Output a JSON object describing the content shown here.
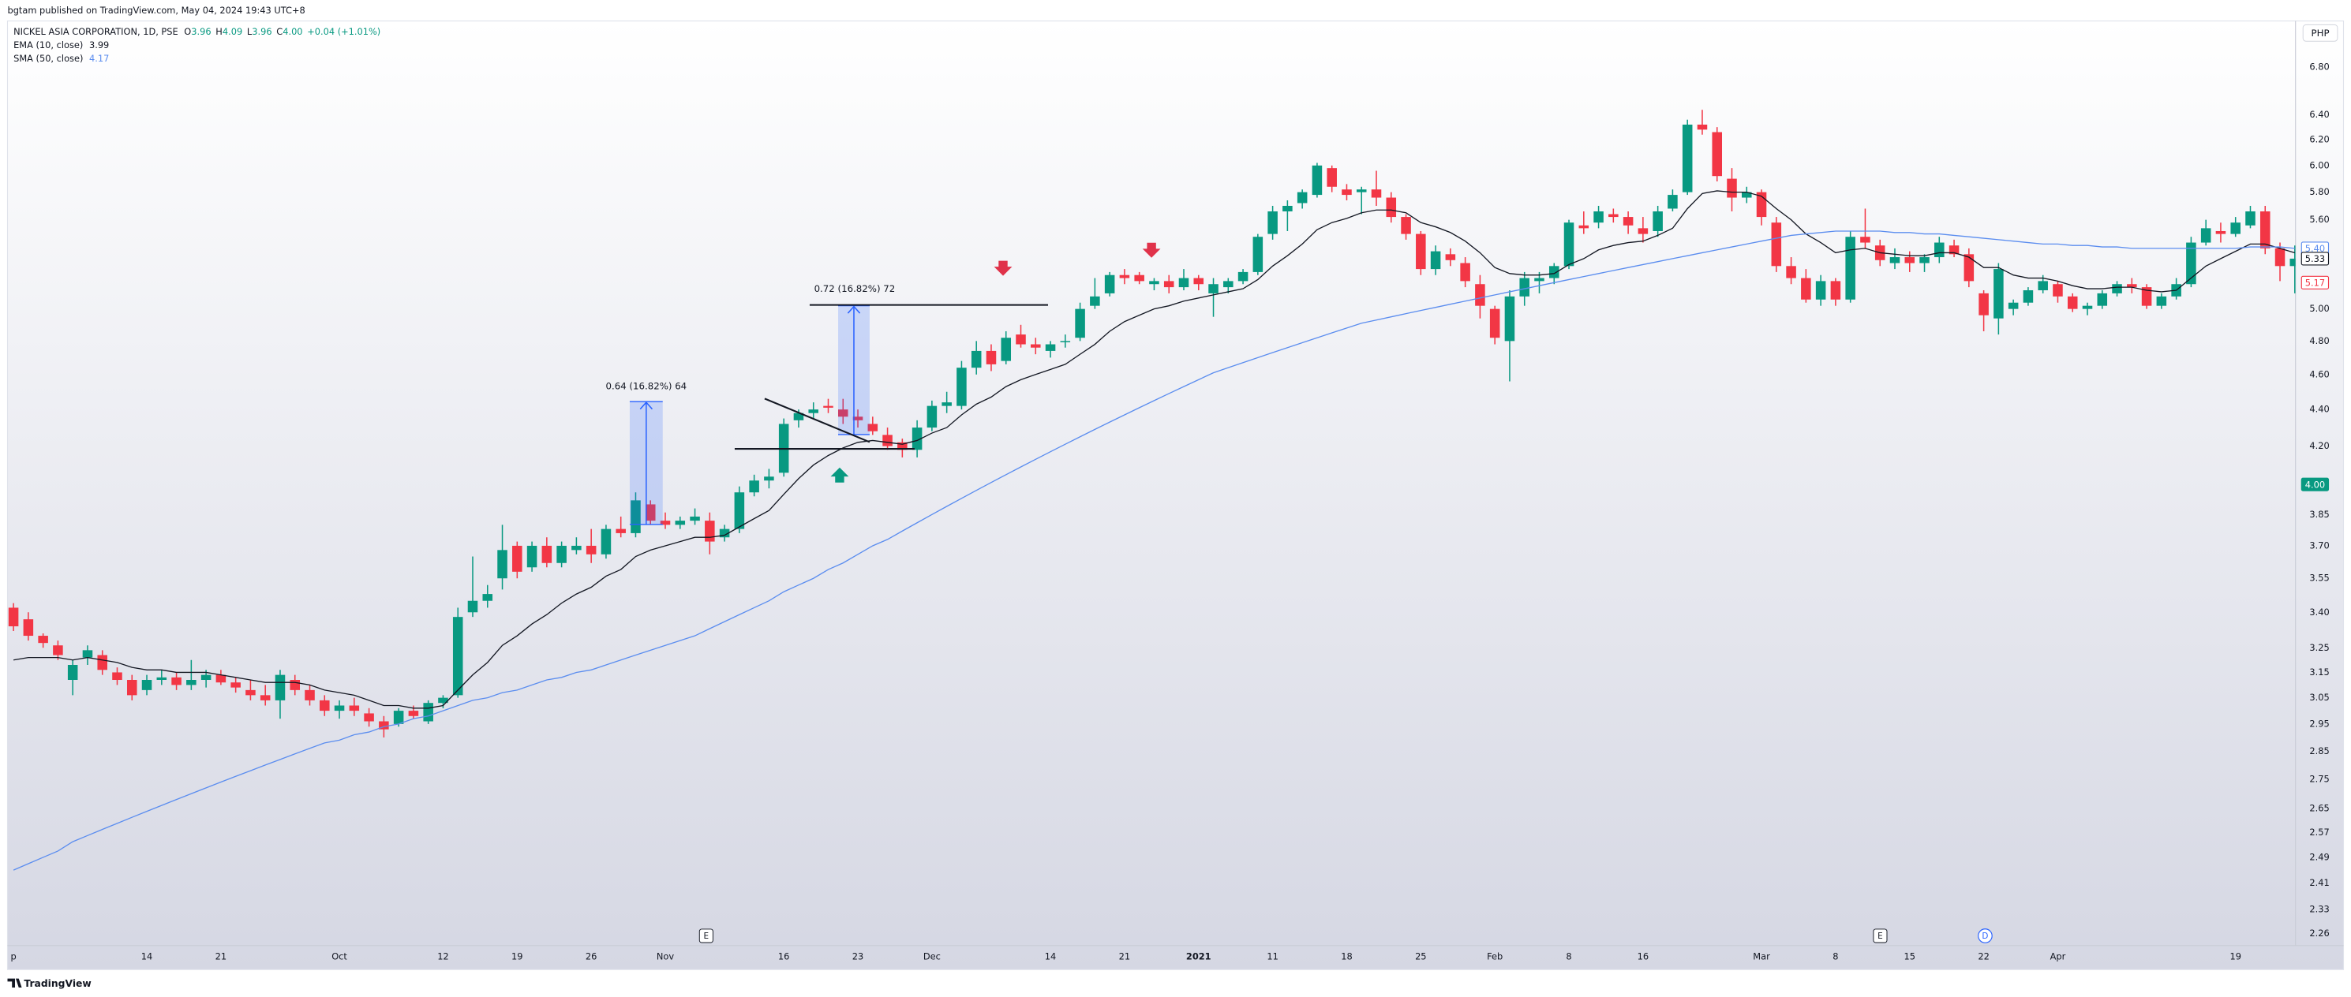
{
  "header": {
    "published": "bgtam published on TradingView.com, May 04, 2024 19:43 UTC+8",
    "symbol": "NICKEL ASIA CORPORATION, 1D, PSE",
    "ohlc": [
      {
        "key": "O",
        "value": "3.96"
      },
      {
        "key": "H",
        "value": "4.09"
      },
      {
        "key": "L",
        "value": "3.96"
      },
      {
        "key": "C",
        "value": "4.00"
      }
    ],
    "change": "+0.04 (+1.01%)"
  },
  "currency": "PHP",
  "footer": "TradingView",
  "chart_data": {
    "type": "candlestick",
    "categories": [
      "p",
      null,
      null,
      null,
      null,
      null,
      null,
      null,
      null,
      "14",
      null,
      null,
      null,
      null,
      "21",
      null,
      null,
      null,
      null,
      null,
      null,
      null,
      "Oct",
      null,
      null,
      null,
      null,
      null,
      null,
      "12",
      null,
      null,
      null,
      null,
      "19",
      null,
      null,
      null,
      null,
      "26",
      null,
      null,
      null,
      null,
      "Nov",
      null,
      null,
      null,
      null,
      null,
      null,
      null,
      "16",
      null,
      null,
      null,
      null,
      "23",
      null,
      null,
      null,
      null,
      "Dec",
      null,
      null,
      null,
      null,
      null,
      null,
      null,
      "14",
      null,
      null,
      null,
      null,
      "21",
      null,
      null,
      null,
      null,
      "2021",
      null,
      null,
      null,
      null,
      "11",
      null,
      null,
      null,
      null,
      "18",
      null,
      null,
      null,
      null,
      "25",
      null,
      null,
      null,
      null,
      "Feb",
      null,
      null,
      null,
      null,
      "8",
      null,
      null,
      null,
      null,
      "16",
      null,
      null,
      null,
      null,
      null,
      null,
      null,
      "Mar",
      null,
      null,
      null,
      null,
      "8",
      null,
      null,
      null,
      null,
      "15",
      null,
      null,
      null,
      null,
      "22",
      null,
      null,
      null,
      null,
      "Apr",
      null,
      null,
      null,
      null,
      null,
      null,
      null,
      null,
      null,
      null,
      null,
      "19",
      null,
      null,
      null,
      null
    ],
    "open": [
      3.42,
      3.37,
      3.3,
      3.26,
      3.12,
      3.21,
      3.22,
      3.15,
      3.12,
      3.08,
      3.12,
      3.13,
      3.1,
      3.12,
      3.14,
      3.11,
      3.08,
      3.06,
      3.04,
      3.12,
      3.08,
      3.04,
      3.0,
      3.02,
      2.99,
      2.96,
      2.95,
      3.0,
      2.96,
      3.03,
      3.06,
      3.4,
      3.45,
      3.55,
      3.7,
      3.6,
      3.7,
      3.62,
      3.68,
      3.7,
      3.66,
      3.78,
      3.76,
      3.9,
      3.82,
      3.8,
      3.82,
      3.82,
      3.74,
      3.78,
      3.96,
      4.02,
      4.06,
      4.34,
      4.38,
      4.42,
      4.4,
      4.36,
      4.32,
      4.26,
      4.22,
      4.18,
      4.3,
      4.42,
      4.42,
      4.64,
      4.74,
      4.68,
      4.84,
      4.78,
      4.74,
      4.8,
      4.82,
      5.02,
      5.1,
      5.22,
      5.22,
      5.16,
      5.18,
      5.14,
      5.2,
      5.1,
      5.14,
      5.18,
      5.24,
      5.5,
      5.66,
      5.72,
      5.78,
      5.98,
      5.82,
      5.8,
      5.82,
      5.76,
      5.62,
      5.5,
      5.26,
      5.36,
      5.3,
      5.16,
      5.0,
      4.8,
      5.08,
      5.18,
      5.2,
      5.28,
      5.56,
      5.58,
      5.64,
      5.62,
      5.54,
      5.52,
      5.68,
      5.8,
      6.32,
      6.26,
      5.9,
      5.76,
      5.8,
      5.58,
      5.28,
      5.2,
      5.06,
      5.18,
      5.06,
      5.48,
      5.42,
      5.3,
      5.34,
      5.3,
      5.34,
      5.42,
      5.36,
      5.1,
      4.94,
      5.0,
      5.04,
      5.12,
      5.16,
      5.08,
      5.0,
      5.02,
      5.1,
      5.16,
      5.14,
      5.02,
      5.08,
      5.16,
      5.44,
      5.52,
      5.5,
      5.56,
      5.66,
      5.4,
      5.28
    ],
    "high": [
      3.44,
      3.4,
      3.31,
      3.28,
      3.2,
      3.26,
      3.24,
      3.17,
      3.14,
      3.14,
      3.16,
      3.15,
      3.2,
      3.16,
      3.16,
      3.13,
      3.12,
      3.1,
      3.16,
      3.14,
      3.1,
      3.06,
      3.04,
      3.05,
      3.01,
      2.98,
      3.01,
      3.02,
      3.04,
      3.06,
      3.42,
      3.65,
      3.52,
      3.8,
      3.72,
      3.72,
      3.74,
      3.72,
      3.74,
      3.78,
      3.8,
      3.84,
      3.96,
      3.92,
      3.86,
      3.84,
      3.88,
      3.86,
      3.8,
      3.99,
      4.05,
      4.08,
      4.35,
      4.4,
      4.44,
      4.46,
      4.46,
      4.4,
      4.36,
      4.3,
      4.24,
      4.34,
      4.45,
      4.5,
      4.68,
      4.8,
      4.78,
      4.86,
      4.9,
      4.82,
      4.8,
      4.84,
      5.04,
      5.2,
      5.24,
      5.26,
      5.24,
      5.2,
      5.22,
      5.26,
      5.22,
      5.2,
      5.2,
      5.26,
      5.5,
      5.7,
      5.74,
      5.82,
      6.02,
      6.0,
      5.86,
      5.84,
      5.96,
      5.8,
      5.64,
      5.52,
      5.42,
      5.4,
      5.34,
      5.22,
      5.02,
      5.12,
      5.24,
      5.24,
      5.3,
      5.6,
      5.66,
      5.7,
      5.68,
      5.66,
      5.62,
      5.7,
      5.82,
      6.36,
      6.44,
      6.3,
      5.98,
      5.84,
      5.82,
      5.62,
      5.34,
      5.26,
      5.22,
      5.2,
      5.52,
      5.68,
      5.46,
      5.4,
      5.38,
      5.36,
      5.48,
      5.46,
      5.4,
      5.12,
      5.3,
      5.06,
      5.14,
      5.22,
      5.18,
      5.1,
      5.04,
      5.12,
      5.18,
      5.2,
      5.16,
      5.1,
      5.2,
      5.48,
      5.6,
      5.58,
      5.62,
      5.7,
      5.7,
      5.44,
      5.42
    ],
    "low": [
      3.32,
      3.28,
      3.25,
      3.2,
      3.06,
      3.18,
      3.14,
      3.1,
      3.04,
      3.06,
      3.1,
      3.08,
      3.08,
      3.09,
      3.1,
      3.07,
      3.04,
      3.02,
      2.97,
      3.06,
      3.02,
      2.98,
      2.97,
      2.98,
      2.94,
      2.9,
      2.94,
      2.97,
      2.95,
      3.01,
      3.05,
      3.38,
      3.42,
      3.5,
      3.55,
      3.58,
      3.6,
      3.6,
      3.66,
      3.62,
      3.64,
      3.74,
      3.74,
      3.8,
      3.78,
      3.78,
      3.8,
      3.66,
      3.72,
      3.76,
      3.94,
      3.98,
      4.04,
      4.3,
      4.35,
      4.38,
      4.32,
      4.3,
      4.26,
      4.18,
      4.14,
      4.14,
      4.28,
      4.38,
      4.4,
      4.6,
      4.62,
      4.66,
      4.76,
      4.72,
      4.7,
      4.76,
      4.8,
      5.0,
      5.08,
      5.16,
      5.16,
      5.12,
      5.1,
      5.12,
      5.12,
      4.95,
      5.1,
      5.16,
      5.22,
      5.46,
      5.52,
      5.68,
      5.76,
      5.8,
      5.74,
      5.64,
      5.7,
      5.58,
      5.46,
      5.22,
      5.22,
      5.28,
      5.14,
      4.94,
      4.78,
      4.56,
      5.02,
      5.1,
      5.16,
      5.26,
      5.5,
      5.54,
      5.58,
      5.5,
      5.44,
      5.48,
      5.66,
      5.78,
      6.24,
      5.88,
      5.66,
      5.72,
      5.56,
      5.24,
      5.16,
      5.04,
      5.02,
      5.02,
      5.04,
      5.4,
      5.28,
      5.26,
      5.24,
      5.24,
      5.3,
      5.34,
      5.14,
      4.86,
      4.84,
      4.96,
      5.02,
      5.1,
      5.04,
      4.98,
      4.96,
      5.0,
      5.08,
      5.1,
      5.0,
      5.0,
      5.06,
      5.14,
      5.42,
      5.44,
      5.48,
      5.54,
      5.36,
      5.18,
      5.1
    ],
    "close": [
      3.34,
      3.3,
      3.27,
      3.22,
      3.18,
      3.24,
      3.16,
      3.12,
      3.06,
      3.12,
      3.13,
      3.1,
      3.12,
      3.14,
      3.11,
      3.09,
      3.06,
      3.04,
      3.14,
      3.08,
      3.04,
      3.0,
      3.02,
      3.0,
      2.96,
      2.93,
      3.0,
      2.98,
      3.03,
      3.05,
      3.38,
      3.45,
      3.48,
      3.68,
      3.58,
      3.7,
      3.62,
      3.7,
      3.7,
      3.66,
      3.78,
      3.76,
      3.92,
      3.82,
      3.8,
      3.82,
      3.84,
      3.72,
      3.78,
      3.96,
      4.02,
      4.04,
      4.32,
      4.38,
      4.4,
      4.41,
      4.36,
      4.34,
      4.28,
      4.2,
      4.18,
      4.3,
      4.42,
      4.44,
      4.64,
      4.74,
      4.66,
      4.82,
      4.78,
      4.76,
      4.78,
      4.8,
      5.0,
      5.08,
      5.22,
      5.2,
      5.18,
      5.18,
      5.14,
      5.2,
      5.16,
      5.16,
      5.18,
      5.24,
      5.48,
      5.66,
      5.7,
      5.8,
      6.0,
      5.84,
      5.78,
      5.82,
      5.76,
      5.62,
      5.5,
      5.26,
      5.38,
      5.32,
      5.18,
      5.02,
      4.82,
      5.08,
      5.2,
      5.2,
      5.28,
      5.58,
      5.54,
      5.66,
      5.62,
      5.56,
      5.5,
      5.66,
      5.78,
      6.32,
      6.28,
      5.92,
      5.76,
      5.8,
      5.62,
      5.28,
      5.2,
      5.06,
      5.18,
      5.06,
      5.48,
      5.44,
      5.32,
      5.34,
      5.3,
      5.34,
      5.44,
      5.36,
      5.18,
      4.96,
      5.26,
      5.04,
      5.12,
      5.18,
      5.08,
      5.0,
      5.02,
      5.1,
      5.16,
      5.14,
      5.02,
      5.08,
      5.16,
      5.44,
      5.54,
      5.5,
      5.58,
      5.66,
      5.4,
      5.28,
      5.33
    ],
    "up_color": "#089981",
    "down_color": "#f23645",
    "series": [
      {
        "name": "EMA (10, close)",
        "color": "#131722",
        "last_value": 3.99,
        "values": [
          3.2,
          3.21,
          3.21,
          3.21,
          3.2,
          3.21,
          3.2,
          3.19,
          3.17,
          3.16,
          3.16,
          3.15,
          3.15,
          3.15,
          3.14,
          3.13,
          3.12,
          3.11,
          3.11,
          3.11,
          3.1,
          3.08,
          3.07,
          3.06,
          3.04,
          3.02,
          3.02,
          3.01,
          3.01,
          3.02,
          3.08,
          3.14,
          3.19,
          3.26,
          3.3,
          3.35,
          3.39,
          3.44,
          3.48,
          3.51,
          3.56,
          3.59,
          3.65,
          3.68,
          3.7,
          3.72,
          3.74,
          3.74,
          3.75,
          3.79,
          3.83,
          3.87,
          3.95,
          4.03,
          4.1,
          4.15,
          4.19,
          4.22,
          4.23,
          4.22,
          4.21,
          4.23,
          4.27,
          4.3,
          4.37,
          4.43,
          4.47,
          4.53,
          4.57,
          4.6,
          4.63,
          4.66,
          4.72,
          4.78,
          4.86,
          4.92,
          4.96,
          5.0,
          5.02,
          5.05,
          5.07,
          5.09,
          5.11,
          5.13,
          5.19,
          5.28,
          5.35,
          5.43,
          5.53,
          5.58,
          5.61,
          5.65,
          5.67,
          5.67,
          5.65,
          5.58,
          5.55,
          5.51,
          5.45,
          5.37,
          5.27,
          5.23,
          5.22,
          5.22,
          5.23,
          5.29,
          5.33,
          5.39,
          5.42,
          5.44,
          5.45,
          5.49,
          5.54,
          5.68,
          5.79,
          5.81,
          5.8,
          5.8,
          5.77,
          5.68,
          5.6,
          5.5,
          5.44,
          5.37,
          5.39,
          5.4,
          5.37,
          5.36,
          5.35,
          5.35,
          5.37,
          5.37,
          5.34,
          5.27,
          5.27,
          5.22,
          5.2,
          5.2,
          5.18,
          5.15,
          5.13,
          5.13,
          5.14,
          5.14,
          5.12,
          5.11,
          5.12,
          5.2,
          5.28,
          5.33,
          5.38,
          5.43,
          5.43,
          5.4,
          5.37
        ]
      },
      {
        "name": "SMA (50, close)",
        "color": "#5b8def",
        "last_value": 4.17,
        "values": [
          2.45,
          2.47,
          2.49,
          2.51,
          2.54,
          2.56,
          2.58,
          2.6,
          2.62,
          2.64,
          2.66,
          2.68,
          2.7,
          2.72,
          2.74,
          2.76,
          2.78,
          2.8,
          2.82,
          2.84,
          2.86,
          2.88,
          2.89,
          2.91,
          2.92,
          2.94,
          2.95,
          2.97,
          2.98,
          3.0,
          3.02,
          3.04,
          3.05,
          3.07,
          3.08,
          3.1,
          3.12,
          3.13,
          3.15,
          3.16,
          3.18,
          3.2,
          3.22,
          3.24,
          3.26,
          3.28,
          3.3,
          3.33,
          3.36,
          3.39,
          3.42,
          3.45,
          3.49,
          3.52,
          3.55,
          3.59,
          3.62,
          3.66,
          3.7,
          3.73,
          3.77,
          3.81,
          3.85,
          3.89,
          3.93,
          3.97,
          4.01,
          4.05,
          4.09,
          4.13,
          4.17,
          4.21,
          4.25,
          4.29,
          4.33,
          4.37,
          4.41,
          4.45,
          4.49,
          4.53,
          4.57,
          4.61,
          4.64,
          4.67,
          4.7,
          4.73,
          4.76,
          4.79,
          4.82,
          4.85,
          4.88,
          4.91,
          4.93,
          4.95,
          4.97,
          4.99,
          5.01,
          5.03,
          5.05,
          5.07,
          5.09,
          5.11,
          5.13,
          5.15,
          5.17,
          5.19,
          5.21,
          5.23,
          5.25,
          5.27,
          5.29,
          5.31,
          5.33,
          5.35,
          5.37,
          5.39,
          5.41,
          5.43,
          5.45,
          5.47,
          5.49,
          5.5,
          5.51,
          5.52,
          5.52,
          5.52,
          5.52,
          5.51,
          5.51,
          5.5,
          5.5,
          5.49,
          5.48,
          5.47,
          5.46,
          5.45,
          5.44,
          5.43,
          5.43,
          5.42,
          5.42,
          5.41,
          5.41,
          5.4,
          5.4,
          5.4,
          5.4,
          5.4,
          5.4,
          5.4,
          5.4,
          5.41,
          5.41,
          5.41,
          5.4
        ]
      }
    ],
    "ylim": [
      2.23,
      7.21
    ],
    "log_scale": true,
    "grid": false,
    "yticks": [
      2.26,
      2.33,
      2.41,
      2.49,
      2.57,
      2.65,
      2.75,
      2.85,
      2.95,
      3.05,
      3.15,
      3.25,
      {
        "value": 3.4,
        "label": "3.40"
      },
      3.55,
      {
        "value": 3.7,
        "label": "3.70"
      },
      3.85,
      {
        "value": 4.2,
        "label": "4.20"
      },
      {
        "value": 4.4,
        "label": "4.40"
      },
      {
        "value": 4.6,
        "label": "4.60"
      },
      {
        "value": 4.8,
        "label": "4.80"
      },
      {
        "value": 5,
        "label": "5.00"
      },
      {
        "value": 5.6,
        "label": "5.60"
      },
      {
        "value": 5.8,
        "label": "5.80"
      },
      {
        "value": 6,
        "label": "6.00"
      },
      {
        "value": 6.2,
        "label": "6.20"
      },
      {
        "value": 6.4,
        "label": "6.40"
      },
      {
        "value": 6.8,
        "label": "6.80"
      }
    ],
    "price_tags": [
      {
        "value": 5.4,
        "label": "5.40",
        "color": "#5b8def",
        "filled": false
      },
      {
        "value": 5.33,
        "label": "5.33",
        "color": "#131722",
        "filled": false
      },
      {
        "value": 5.17,
        "label": "5.17",
        "color": "#f23645",
        "filled": false
      },
      {
        "value": 4,
        "label": "4.00",
        "color": "#089981",
        "filled": true
      }
    ],
    "annotations": [
      "0.64 (16.82%) 64",
      "0.72 (16.82%) 72"
    ],
    "events": [
      "E",
      "E",
      "D"
    ]
  }
}
